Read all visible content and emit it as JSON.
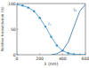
{
  "chart_data": {
    "type": "line",
    "x_label": "λ (nm)",
    "y_label": "Relative transmission (%)",
    "x": [
      0,
      50,
      100,
      150,
      200,
      250,
      300,
      350,
      400,
      450,
      500,
      550,
      600
    ],
    "series": [
      {
        "name": "f₁",
        "color": "#3a8fc9",
        "marker": "circle",
        "line_style": "solid",
        "values": [
          98,
          96,
          92,
          85,
          72,
          55,
          35,
          18,
          8,
          3,
          1,
          0,
          0
        ]
      },
      {
        "name": "f₂",
        "color": "#2f6fa8",
        "marker": "none",
        "line_style": "solid",
        "values": [
          null,
          null,
          null,
          null,
          null,
          null,
          0,
          2,
          8,
          25,
          55,
          85,
          98
        ]
      }
    ],
    "xlim": [
      0,
      600
    ],
    "xticks": [
      0,
      200,
      400,
      600
    ],
    "ylim": [
      0,
      100
    ],
    "yticks": [
      0,
      50,
      100
    ],
    "grid": false
  }
}
